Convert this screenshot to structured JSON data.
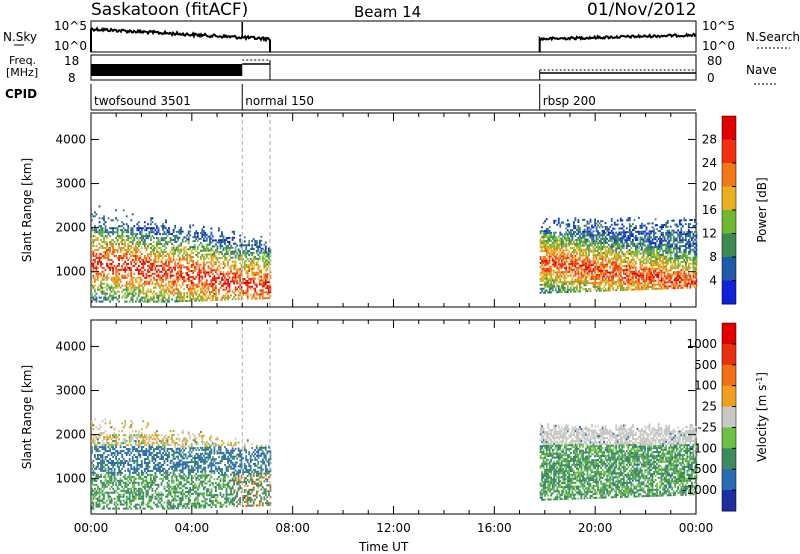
{
  "header": {
    "station": "Saskatoon (fitACF)",
    "beam": "Beam 14",
    "date": "01/Nov/2012"
  },
  "strips": {
    "nsky_label": "N.Sky",
    "nsky_ticks": [
      "10^5",
      "10^0"
    ],
    "nsearch_label": "N.Search",
    "freq_label_1": "Freq.",
    "freq_label_2": "[MHz]",
    "freq_ticks": [
      "18",
      "8"
    ],
    "nave_label": "Nave",
    "nave_ticks": [
      "80",
      "0"
    ],
    "cpid_label": "CPID",
    "cpids": [
      {
        "label": "twofsound 3501",
        "start_h": 0.0,
        "end_h": 6.0
      },
      {
        "label": "normal 150",
        "start_h": 6.0,
        "end_h": 7.1
      },
      {
        "label": "rbsp 200",
        "start_h": 17.8,
        "end_h": 24.0
      }
    ]
  },
  "chart_data": [
    {
      "type": "heatmap",
      "title": "Power",
      "ylabel": "Slant Range [km]",
      "xlabel": "Time UT",
      "xlim_hours": [
        0,
        24
      ],
      "ylim": [
        200,
        4600
      ],
      "yticks": [
        "1000",
        "2000",
        "3000",
        "4000"
      ],
      "colorbar": {
        "label": "Power [dB]",
        "ticks": [
          "4",
          "8",
          "12",
          "16",
          "20",
          "24",
          "28"
        ],
        "range": [
          0,
          32
        ],
        "colors": [
          "#1020d8",
          "#1f5aa8",
          "#3c8a50",
          "#6fb832",
          "#e8b020",
          "#f07818",
          "#f03010",
          "#e00000"
        ]
      },
      "data_intervals_h": [
        [
          0.0,
          7.1
        ],
        [
          17.8,
          24.0
        ]
      ]
    },
    {
      "type": "heatmap",
      "title": "Velocity",
      "ylabel": "Slant Range [km]",
      "xlabel": "Time UT",
      "xlim_hours": [
        0,
        24
      ],
      "ylim": [
        200,
        4600
      ],
      "yticks": [
        "1000",
        "2000",
        "3000",
        "4000"
      ],
      "colorbar": {
        "label": "Velocity [m s^-1]",
        "ticks": [
          "1000",
          "500",
          "100",
          "25",
          "-25",
          "-100",
          "-500",
          "-1000"
        ],
        "colors": [
          "#1c2f9e",
          "#2d6bb0",
          "#3d8a5f",
          "#6cc046",
          "#c8c8c2",
          "#f0a020",
          "#f07018",
          "#e83010",
          "#e00000"
        ]
      },
      "data_intervals_h": [
        [
          0.0,
          7.1
        ],
        [
          17.8,
          24.0
        ]
      ]
    }
  ],
  "xaxis": {
    "ticks": [
      "00:00",
      "04:00",
      "08:00",
      "12:00",
      "16:00",
      "20:00",
      "00:00"
    ],
    "label": "Time UT"
  }
}
